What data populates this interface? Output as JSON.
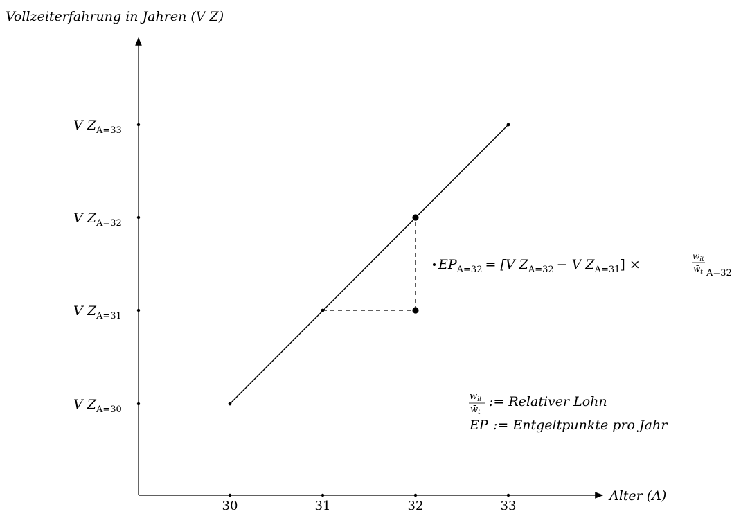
{
  "title": "Vollzeiterfahrung in Jahren (V Z)",
  "x_axis_label": "Alter (A)",
  "x_ticks": [
    "30",
    "31",
    "32",
    "33"
  ],
  "y_ticks": [
    {
      "base": "V Z",
      "sub": "A=30"
    },
    {
      "base": "V Z",
      "sub": "A=31"
    },
    {
      "base": "V Z",
      "sub": "A=32"
    },
    {
      "base": "V Z",
      "sub": "A=33"
    }
  ],
  "formula": {
    "lhs_base": "EP",
    "lhs_sub": "A=32",
    "eq_open": "= [V Z",
    "sub1": "A=32",
    "minus": "− V Z",
    "sub2": "A=31",
    "close": "] ×",
    "num": "w",
    "num_sub": "it",
    "den": "w̄",
    "den_sub": "t",
    "tail_sub": "A=32"
  },
  "legend": {
    "line1_def": ":= Relativer Lohn",
    "line2_base": "EP",
    "line2_def": ":= Entgeltpunkte pro Jahr",
    "frac_num": "w",
    "frac_num_sub": "it",
    "frac_den": "w̄",
    "frac_den_sub": "t"
  }
}
